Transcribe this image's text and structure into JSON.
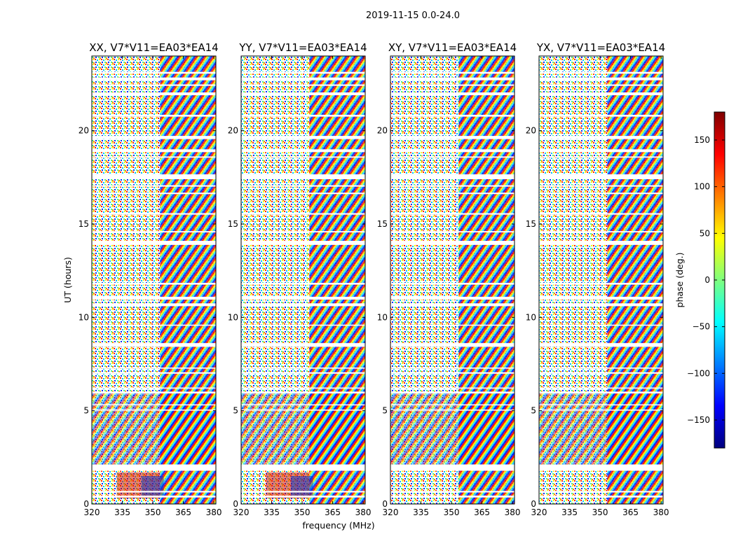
{
  "chart_data": {
    "type": "heatmap",
    "title": "2019-11-15 0.0-24.0",
    "xlabel": "frequency (MHz)",
    "ylabel": "UT (hours)",
    "xlim": [
      320,
      381
    ],
    "ylim": [
      0,
      24
    ],
    "x_ticks": [
      320,
      335,
      350,
      365,
      380
    ],
    "y_ticks": [
      0,
      5,
      10,
      15,
      20
    ],
    "panels": [
      {
        "name": "XX",
        "title": "XX, V7*V11=EA03*EA14"
      },
      {
        "name": "YY",
        "title": "YY, V7*V11=EA03*EA14"
      },
      {
        "name": "XY",
        "title": "XY, V7*V11=EA03*EA14"
      },
      {
        "name": "YX",
        "title": "YX, V7*V11=EA03*EA14"
      }
    ],
    "flagged_gaps_ut_hours": [
      [
        0.35,
        0.45
      ],
      [
        0.62,
        0.7
      ],
      [
        1.78,
        2.12
      ],
      [
        5.0,
        5.06
      ],
      [
        5.28,
        5.34
      ],
      [
        5.92,
        6.02
      ],
      [
        6.18,
        6.24
      ],
      [
        6.98,
        7.06
      ],
      [
        7.25,
        7.31
      ],
      [
        8.42,
        8.62
      ],
      [
        9.55,
        9.61
      ],
      [
        10.6,
        10.75
      ],
      [
        10.95,
        11.1
      ],
      [
        11.75,
        11.85
      ],
      [
        13.88,
        14.1
      ],
      [
        14.55,
        14.62
      ],
      [
        15.5,
        15.58
      ],
      [
        16.6,
        16.68
      ],
      [
        17.0,
        17.08
      ],
      [
        17.4,
        17.66
      ],
      [
        18.55,
        18.62
      ],
      [
        18.85,
        19.0
      ],
      [
        19.55,
        19.72
      ],
      [
        20.75,
        20.85
      ],
      [
        21.9,
        22.05
      ],
      [
        22.4,
        22.48
      ],
      [
        22.7,
        22.85
      ],
      [
        23.05,
        23.15
      ]
    ],
    "colorbar": {
      "label": "phase (deg.)",
      "range": [
        -180,
        180
      ],
      "ticks": [
        -150,
        -100,
        -50,
        0,
        50,
        100,
        150
      ],
      "colormap": "jet",
      "colors": [
        "#00007f",
        "#0000ff",
        "#007fff",
        "#00ffff",
        "#7fff7f",
        "#ffff00",
        "#ff7f00",
        "#ff0000",
        "#7f0000"
      ]
    }
  }
}
